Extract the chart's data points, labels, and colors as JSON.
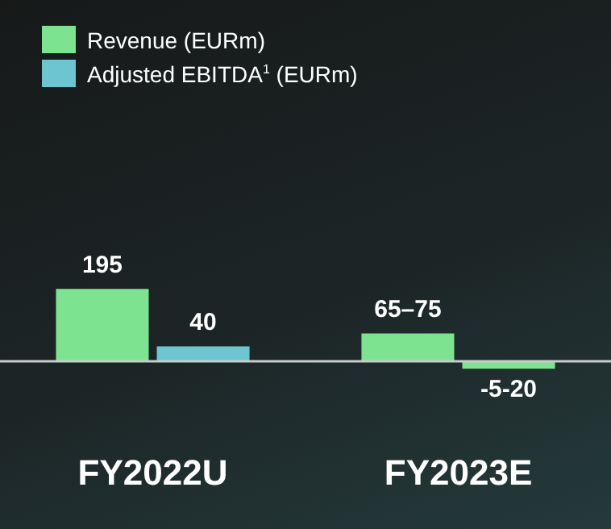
{
  "chart_data": {
    "type": "bar",
    "categories": [
      "FY2022U",
      "FY2023E"
    ],
    "series": [
      {
        "name": "Revenue (EURm)",
        "color": "#7ee391",
        "values": [
          195,
          75
        ],
        "value_labels": [
          "195",
          "65–75"
        ]
      },
      {
        "name": "Adjusted EBITDA$^{1}$ (EURm)",
        "color": "#6cc5d0",
        "colors": [
          "#6cc5d0",
          "#7ee391"
        ],
        "values": [
          40,
          -20
        ],
        "value_labels": [
          "40",
          "-5-20"
        ]
      }
    ],
    "tick_labels": "x",
    "grid": false,
    "legend": "top left"
  }
}
